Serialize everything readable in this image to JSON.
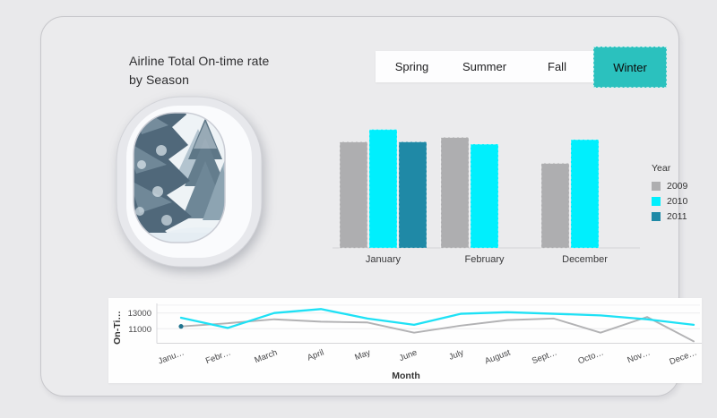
{
  "card": {
    "title_line1": "Airline Total On-time rate",
    "title_line2": "by Season"
  },
  "season_tabs": {
    "items": [
      "Spring",
      "Summer",
      "Fall",
      "Winter"
    ],
    "selected": "Winter",
    "selected_color": "#2bc1be"
  },
  "window_image": {
    "description": "snow-covered-fir-forest-through-airplane-window"
  },
  "colors": {
    "accent_teal": "#2bc1be",
    "year_2009_gray": "#aeaeb0",
    "year_2010_cyan": "#00effd",
    "year_2011_teal": "#1f89a6",
    "page_background": "#e9e9eb",
    "panel_white": "#fefefe"
  },
  "chart_data": [
    {
      "type": "bar",
      "title": "Airline Total On-time rate by Season (Winter)",
      "categories": [
        "January",
        "February",
        "December"
      ],
      "series": [
        {
          "name": "2009",
          "color": "#aeaeb0",
          "values": [
            11300,
            11700,
            9400
          ]
        },
        {
          "name": "2010",
          "color": "#00effd",
          "values": [
            12400,
            11100,
            11500
          ]
        },
        {
          "name": "2011",
          "color": "#1f89a6",
          "values": [
            11300,
            null,
            null
          ]
        }
      ],
      "legend_title": "Year",
      "legend_position": "right"
    },
    {
      "type": "line",
      "xlabel": "Month",
      "ylabel": "On-Ti…",
      "yticks": [
        11000,
        13000
      ],
      "ylim": [
        9000,
        14400
      ],
      "grid": "horizontal",
      "x": [
        "Janu…",
        "Febr…",
        "March",
        "April",
        "May",
        "June",
        "July",
        "August",
        "Sept…",
        "Octo…",
        "Nov…",
        "Dece…"
      ],
      "series": [
        {
          "name": "2009",
          "color": "#b2b2b4",
          "values": [
            11300,
            11700,
            12200,
            11900,
            11800,
            10500,
            11400,
            12100,
            12300,
            10500,
            12500,
            9400
          ]
        },
        {
          "name": "2010",
          "color": "#1ee1f5",
          "values": [
            12400,
            11100,
            13000,
            13500,
            12300,
            11500,
            12900,
            13100,
            12900,
            12700,
            12200,
            11500
          ]
        },
        {
          "name": "2011",
          "color": "#20748f",
          "values": [
            11300,
            null,
            null,
            null,
            null,
            null,
            null,
            null,
            null,
            null,
            null,
            null
          ]
        }
      ]
    }
  ]
}
